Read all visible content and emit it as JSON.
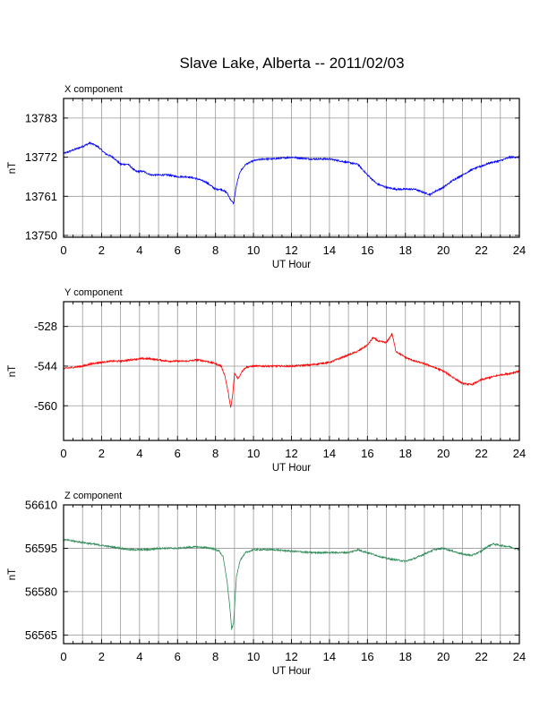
{
  "page_title": "Slave Lake, Alberta -- 2011/02/03",
  "chart_data": [
    {
      "type": "line",
      "panel_label": "X component",
      "ylabel": "nT",
      "xlabel": "UT Hour",
      "color": "#0000ff",
      "xlim": [
        0,
        24
      ],
      "ylim": [
        13749.5,
        13788.5
      ],
      "yticks": [
        13750,
        13761,
        13772,
        13783
      ],
      "xticks": [
        0,
        2,
        4,
        6,
        8,
        10,
        12,
        14,
        16,
        18,
        20,
        22,
        24
      ],
      "grid": true,
      "series": [
        {
          "x": [
            0,
            0.5,
            1,
            1.4,
            1.8,
            2.2,
            2.6,
            3,
            3.4,
            3.8,
            4.2,
            4.6,
            5,
            5.5,
            6,
            6.5,
            7,
            7.5,
            8,
            8.3,
            8.6,
            8.8,
            8.95,
            9.1,
            9.3,
            9.6,
            10,
            10.5,
            11,
            12,
            13,
            14,
            15,
            15.5,
            16,
            16.5,
            17,
            17.5,
            18,
            18.5,
            19,
            19.3,
            19.6,
            20,
            20.5,
            21,
            21.5,
            22,
            22.5,
            23,
            23.5,
            24
          ],
          "y": [
            13773,
            13774,
            13775,
            13776,
            13775,
            13773,
            13772,
            13770,
            13770,
            13768,
            13768,
            13767,
            13767,
            13767,
            13766.5,
            13766.5,
            13766,
            13765,
            13763,
            13763,
            13762,
            13760,
            13759,
            13764,
            13768,
            13770,
            13771,
            13771.5,
            13771.5,
            13772,
            13771.5,
            13771.5,
            13770.5,
            13770,
            13767,
            13764.5,
            13763.5,
            13763,
            13763,
            13763,
            13762,
            13761.5,
            13762.5,
            13763.5,
            13765.5,
            13767,
            13768.5,
            13769.5,
            13770.5,
            13771,
            13772,
            13772
          ]
        }
      ]
    },
    {
      "type": "line",
      "panel_label": "Y component",
      "ylabel": "nT",
      "xlabel": "UT Hour",
      "color": "#ff0000",
      "xlim": [
        0,
        24
      ],
      "ylim": [
        -574,
        -518
      ],
      "yticks": [
        -560,
        -544,
        -528
      ],
      "xticks": [
        0,
        2,
        4,
        6,
        8,
        10,
        12,
        14,
        16,
        18,
        20,
        22,
        24
      ],
      "grid": true,
      "series": [
        {
          "x": [
            0,
            0.5,
            1,
            1.5,
            2,
            2.5,
            3,
            3.5,
            4,
            4.5,
            5,
            5.5,
            6,
            6.5,
            7,
            7.5,
            8,
            8.3,
            8.5,
            8.7,
            8.8,
            8.9,
            9.0,
            9.2,
            9.4,
            9.6,
            10,
            11,
            12,
            13,
            14,
            14.5,
            15,
            15.5,
            16,
            16.3,
            16.6,
            17,
            17.3,
            17.5,
            18,
            18.5,
            19,
            19.5,
            20,
            20.5,
            21,
            21.5,
            22,
            22.5,
            23,
            23.5,
            24
          ],
          "y": [
            -545,
            -544.5,
            -544,
            -543,
            -542.5,
            -542,
            -542,
            -541.5,
            -541,
            -541,
            -541.5,
            -542,
            -542,
            -542,
            -541.5,
            -542,
            -543,
            -544,
            -548,
            -556,
            -561,
            -556,
            -547,
            -549,
            -546,
            -544.5,
            -544,
            -544,
            -544,
            -543.5,
            -542.5,
            -541,
            -539.5,
            -538,
            -535.5,
            -532.5,
            -534,
            -534.5,
            -531,
            -538,
            -540.5,
            -542,
            -543,
            -544.5,
            -546,
            -548.5,
            -551,
            -551.5,
            -549.5,
            -548.5,
            -547.5,
            -547,
            -546
          ]
        }
      ]
    },
    {
      "type": "line",
      "panel_label": "Z component",
      "ylabel": "nT",
      "xlabel": "UT Hour",
      "color": "#2e8b57",
      "xlim": [
        0,
        24
      ],
      "ylim": [
        56562,
        56610
      ],
      "yticks": [
        56565,
        56580,
        56595,
        56610
      ],
      "xticks": [
        0,
        2,
        4,
        6,
        8,
        10,
        12,
        14,
        16,
        18,
        20,
        22,
        24
      ],
      "grid": true,
      "series": [
        {
          "x": [
            0,
            0.5,
            1,
            1.5,
            2,
            2.5,
            3,
            3.5,
            4,
            4.5,
            5,
            6,
            7,
            7.8,
            8.2,
            8.4,
            8.6,
            8.75,
            8.85,
            8.95,
            9.1,
            9.3,
            9.6,
            10,
            11,
            12,
            13,
            14,
            15,
            15.5,
            16,
            16.5,
            17,
            17.5,
            18,
            18.5,
            19,
            19.5,
            20,
            20.5,
            21,
            21.5,
            22,
            22.3,
            22.6,
            23,
            23.5,
            24
          ],
          "y": [
            56598,
            56597.5,
            56597,
            56596.5,
            56596,
            56595.5,
            56595,
            56594.5,
            56594.5,
            56594.5,
            56595,
            56595,
            56595.5,
            56595,
            56594,
            56592,
            56584,
            56575,
            56567,
            56569,
            56585,
            56591,
            56593.5,
            56594.5,
            56594.5,
            56594,
            56593.5,
            56593.5,
            56593.5,
            56594.5,
            56593.5,
            56592.5,
            56591.5,
            56591,
            56590.5,
            56591.5,
            56593,
            56594.5,
            56595,
            56594,
            56593,
            56592.5,
            56594,
            56595.5,
            56596.5,
            56596,
            56595.5,
            56594.5
          ]
        }
      ]
    }
  ]
}
